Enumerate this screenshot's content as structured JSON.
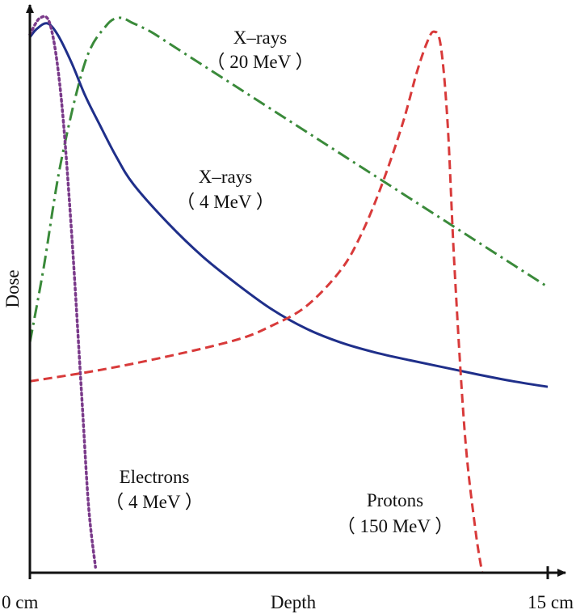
{
  "chart_data": {
    "type": "line",
    "title": "",
    "xlabel": "Depth",
    "ylabel": "Dose",
    "xlim": [
      0,
      15
    ],
    "ylim": [
      0,
      1
    ],
    "grid": false,
    "x_tick_labels": [
      {
        "x": 0,
        "label": "0 cm"
      },
      {
        "x": 15,
        "label": "15 cm"
      }
    ],
    "series": [
      {
        "name": "X-rays (20 MeV)",
        "style": "dash-dot",
        "color": "#3a8a3a",
        "x": [
          0,
          0.4,
          0.9,
          1.6,
          2.2,
          2.6,
          3.0,
          3.5,
          4.0,
          5.0,
          6.0,
          7.0,
          8.0,
          9.0,
          10.0,
          11.0,
          12.0,
          13.0,
          14.0,
          15.0
        ],
        "y": [
          0.415,
          0.55,
          0.74,
          0.92,
          0.985,
          1.0,
          0.99,
          0.975,
          0.955,
          0.915,
          0.875,
          0.835,
          0.795,
          0.755,
          0.715,
          0.675,
          0.635,
          0.595,
          0.555,
          0.515
        ]
      },
      {
        "name": "X-rays (4 MeV)",
        "style": "solid",
        "color": "#1f2f8a",
        "x": [
          0,
          0.2,
          0.5,
          0.8,
          1.2,
          1.6,
          2.0,
          2.5,
          3.0,
          4.0,
          5.0,
          6.0,
          7.0,
          8.0,
          9.0,
          10.0,
          11.0,
          12.0,
          13.0,
          14.0,
          15.0
        ],
        "y": [
          0.965,
          0.98,
          0.99,
          0.97,
          0.92,
          0.86,
          0.81,
          0.75,
          0.7,
          0.63,
          0.57,
          0.52,
          0.475,
          0.44,
          0.415,
          0.397,
          0.383,
          0.37,
          0.357,
          0.345,
          0.335
        ]
      },
      {
        "name": "Electrons (4 MeV)",
        "style": "dotted",
        "color": "#7a3a8a",
        "x": [
          0,
          0.3,
          0.6,
          0.9,
          1.2,
          1.5,
          1.7,
          1.9
        ],
        "y": [
          0.97,
          1.0,
          0.985,
          0.86,
          0.62,
          0.32,
          0.12,
          0.01
        ]
      },
      {
        "name": "Protons (150 MeV)",
        "style": "dashed",
        "color": "#d83a3a",
        "x": [
          0,
          2.0,
          4.0,
          6.0,
          7.0,
          8.0,
          9.0,
          9.6,
          10.2,
          10.8,
          11.2,
          11.5,
          11.7,
          11.9,
          12.1,
          12.3,
          12.6,
          12.9,
          13.1
        ],
        "y": [
          0.345,
          0.365,
          0.39,
          0.42,
          0.445,
          0.48,
          0.545,
          0.61,
          0.7,
          0.81,
          0.9,
          0.955,
          0.975,
          0.95,
          0.81,
          0.55,
          0.25,
          0.08,
          0.0
        ]
      }
    ],
    "annotations": [
      {
        "id": "xrays20",
        "line1": "X–rays",
        "line2": "（ 20 MeV ）"
      },
      {
        "id": "xrays4",
        "line1": "X–rays",
        "line2": "（ 4 MeV ）"
      },
      {
        "id": "electrons",
        "line1": "Electrons",
        "line2": "（ 4 MeV ）"
      },
      {
        "id": "protons",
        "line1": "Protons",
        "line2": "（ 150 MeV ）"
      }
    ]
  }
}
